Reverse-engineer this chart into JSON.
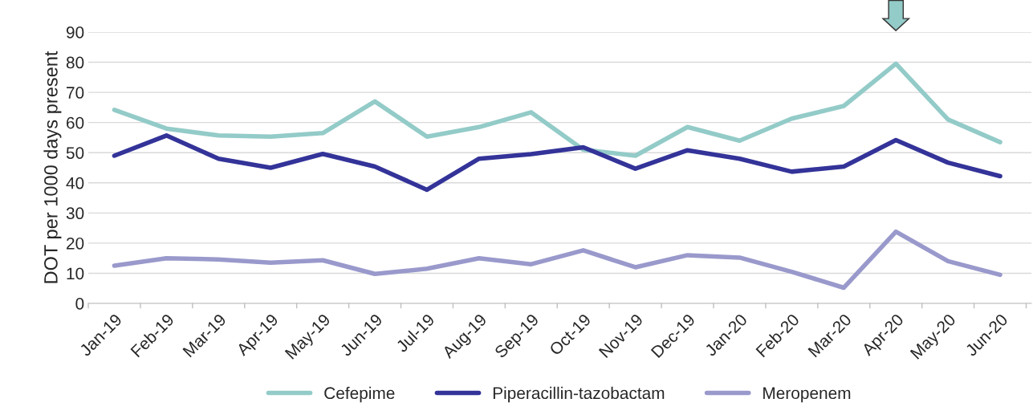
{
  "chart_data": {
    "type": "line",
    "ylabel": "DOT per 1000 days present",
    "categories": [
      "Jan-19",
      "Feb-19",
      "Mar-19",
      "Apr-19",
      "May-19",
      "Jun-19",
      "Jul-19",
      "Aug-19",
      "Sep-19",
      "Oct-19",
      "Nov-19",
      "Dec-19",
      "Jan-20",
      "Feb-20",
      "Mar-20",
      "Apr-20",
      "May-20",
      "Jun-20"
    ],
    "series": [
      {
        "name": "Cefepime",
        "color": "#93cbc8",
        "values": [
          64.2,
          58,
          55.7,
          55.3,
          56.5,
          67,
          55.3,
          58.5,
          63.4,
          51,
          49,
          58.5,
          54,
          61.3,
          65.5,
          79.5,
          61,
          53.5
        ]
      },
      {
        "name": "Piperacillin-tazobactam",
        "color": "#333399",
        "values": [
          49,
          55.7,
          48,
          45,
          49.6,
          45.4,
          37.7,
          48,
          49.5,
          51.8,
          44.7,
          50.8,
          48,
          43.7,
          45.4,
          54.2,
          46.7,
          42.2
        ]
      },
      {
        "name": "Meropenem",
        "color": "#9999cc",
        "values": [
          12.5,
          15,
          14.6,
          13.5,
          14.3,
          9.8,
          11.5,
          15,
          13,
          17.6,
          12,
          16,
          15.2,
          10.5,
          5.2,
          23.8,
          14,
          9.5
        ]
      }
    ],
    "ylim": [
      0,
      90
    ],
    "yticks": [
      0,
      10,
      20,
      30,
      40,
      50,
      60,
      70,
      80,
      90
    ],
    "grid": "y",
    "legend": "bottom",
    "marker": "none",
    "line_style": "solid"
  }
}
